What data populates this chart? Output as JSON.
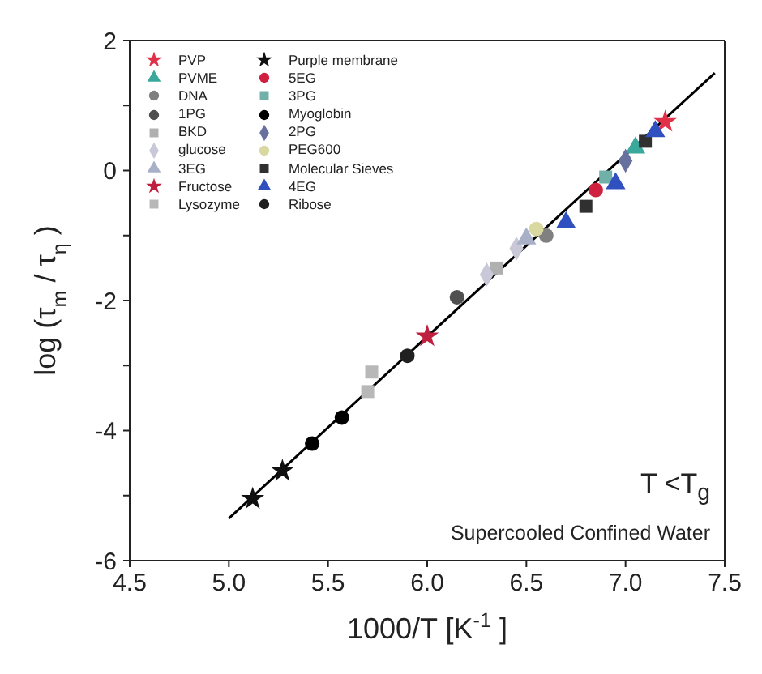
{
  "chart_data": {
    "type": "scatter",
    "xlabel": "1000/T [K$^{-1}$]",
    "ylabel": "log (τ$_{m}$ / τ$_{η}$)",
    "xlim": [
      4.5,
      7.5
    ],
    "xticks": [
      4.5,
      {
        "value": 5,
        "label": "5.0"
      },
      5.5,
      {
        "value": 6,
        "label": "6.0"
      },
      6.5,
      {
        "value": 7,
        "label": "7.0"
      },
      7.5
    ],
    "ylim": [
      -6,
      2
    ],
    "yticks": [
      -6,
      {
        "value": -5,
        "label": null
      },
      -4,
      {
        "value": -3,
        "label": null
      },
      -2,
      {
        "value": -1,
        "label": null
      },
      0,
      {
        "value": 1,
        "label": null
      },
      2
    ],
    "grid": false,
    "legend": "top left",
    "annotations": [
      "T <T$_{g}$",
      "Supercooled Confined Water"
    ],
    "series": [
      {
        "name": "PVP",
        "color": "#e0304a",
        "marker": "star",
        "x": [
          7.2
        ],
        "values": [
          0.75
        ]
      },
      {
        "name": "PVME",
        "color": "#3aa89a",
        "marker": "triangle",
        "x": [
          7.05
        ],
        "values": [
          0.35
        ]
      },
      {
        "name": "DNA",
        "color": "#808080",
        "marker": "circle",
        "x": [
          6.6
        ],
        "values": [
          -1.0
        ]
      },
      {
        "name": "1PG",
        "color": "#505050",
        "marker": "circle",
        "x": [
          6.15
        ],
        "values": [
          -1.95
        ]
      },
      {
        "name": "BKD",
        "color": "#b0b0b0",
        "marker": "square",
        "x": [
          6.35
        ],
        "values": [
          -1.5
        ]
      },
      {
        "name": "glucose",
        "color": "#c8c8d8",
        "marker": "diamond",
        "x": [
          6.3,
          6.45
        ],
        "values": [
          -1.6,
          -1.2
        ]
      },
      {
        "name": "3EG",
        "color": "#a8b0c8",
        "marker": "triangle",
        "x": [
          6.5
        ],
        "values": [
          -1.05
        ]
      },
      {
        "name": "Fructose",
        "color": "#c02040",
        "marker": "star",
        "x": [
          6.0
        ],
        "values": [
          -2.55
        ]
      },
      {
        "name": "Lysozyme",
        "color": "#b8b8b8",
        "marker": "square",
        "x": [
          5.7,
          5.72
        ],
        "values": [
          -3.4,
          -3.1
        ]
      },
      {
        "name": "Purple membrane",
        "color": "#101010",
        "marker": "star",
        "x": [
          5.12,
          5.27
        ],
        "values": [
          -5.05,
          -4.62
        ]
      },
      {
        "name": "5EG",
        "color": "#d02040",
        "marker": "circle",
        "x": [
          6.85
        ],
        "values": [
          -0.3
        ]
      },
      {
        "name": "3PG",
        "color": "#70b0a8",
        "marker": "square",
        "x": [
          6.9
        ],
        "values": [
          -0.1
        ]
      },
      {
        "name": "Myoglobin",
        "color": "#000000",
        "marker": "circle",
        "x": [
          5.42,
          5.57
        ],
        "values": [
          -4.2,
          -3.8
        ]
      },
      {
        "name": "2PG",
        "color": "#6870a0",
        "marker": "diamond",
        "x": [
          7.0
        ],
        "values": [
          0.15
        ]
      },
      {
        "name": "PEG600",
        "color": "#d8d8a0",
        "marker": "circle",
        "x": [
          6.55
        ],
        "values": [
          -0.9
        ]
      },
      {
        "name": "Molecular Sieves",
        "color": "#303030",
        "marker": "square",
        "x": [
          6.8,
          7.1
        ],
        "values": [
          -0.55,
          0.45
        ]
      },
      {
        "name": "4EG",
        "color": "#3050c0",
        "marker": "triangle",
        "x": [
          6.7,
          6.95,
          7.15
        ],
        "values": [
          -0.8,
          -0.2,
          0.6
        ]
      },
      {
        "name": "Ribose",
        "color": "#202020",
        "marker": "circle",
        "x": [
          5.9
        ],
        "values": [
          -2.85
        ]
      },
      {
        "type": "line",
        "color": "#000000",
        "x": [
          5.0,
          7.45
        ],
        "values": [
          -5.35,
          1.5
        ]
      }
    ]
  }
}
